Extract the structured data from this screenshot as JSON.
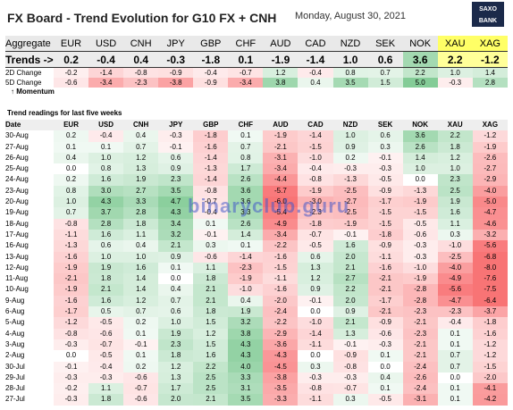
{
  "header": {
    "title": "FX Board - Trend Evolution for G10 FX + CNH",
    "date": "Monday, August 30, 2021",
    "logo": "SAXO BANK"
  },
  "summary": {
    "columns": [
      "Aggregate",
      "EUR",
      "USD",
      "CNH",
      "JPY",
      "GBP",
      "CHF",
      "AUD",
      "CAD",
      "NZD",
      "SEK",
      "NOK",
      "XAU",
      "XAG"
    ],
    "rows": [
      [
        "Trends ->",
        "0.2",
        "-0.4",
        "0.4",
        "-0.3",
        "-1.8",
        "0.1",
        "-1.9",
        "-1.4",
        "1.0",
        "0.6",
        "3.6",
        "2.2",
        "-1.2"
      ],
      [
        "2D Change",
        "-0.2",
        "-1.4",
        "-0.8",
        "-0.9",
        "-0.4",
        "-0.7",
        "1.2",
        "-0.4",
        "0.8",
        "0.7",
        "2.2",
        "1.0",
        "1.4"
      ],
      [
        "5D Change",
        "-0.6",
        "-3.4",
        "-2.3",
        "-3.8",
        "-0.9",
        "-3.4",
        "3.8",
        "0.4",
        "3.5",
        "1.5",
        "5.0",
        "-0.3",
        "2.8"
      ]
    ],
    "momentum": "↑ Momentum"
  },
  "readings": {
    "title": "Trend readings for last five weeks",
    "columns": [
      "Date",
      "EUR",
      "USD",
      "CNH",
      "JPY",
      "GBP",
      "CHF",
      "AUD",
      "CAD",
      "NZD",
      "SEK",
      "NOK",
      "XAU",
      "XAG"
    ],
    "rows": [
      [
        "30-Aug",
        "0.2",
        "-0.4",
        "0.4",
        "-0.3",
        "-1.8",
        "0.1",
        "-1.9",
        "-1.4",
        "1.0",
        "0.6",
        "3.6",
        "2.2",
        "-1.2"
      ],
      [
        "27-Aug",
        "0.1",
        "0.1",
        "0.7",
        "-0.1",
        "-1.6",
        "0.7",
        "-2.1",
        "-1.5",
        "0.9",
        "0.3",
        "2.6",
        "1.8",
        "-1.9"
      ],
      [
        "26-Aug",
        "0.4",
        "1.0",
        "1.2",
        "0.6",
        "-1.4",
        "0.8",
        "-3.1",
        "-1.0",
        "0.2",
        "-0.1",
        "1.4",
        "1.2",
        "-2.6"
      ],
      [
        "25-Aug",
        "0.0",
        "0.8",
        "1.3",
        "0.9",
        "-1.3",
        "1.7",
        "-3.4",
        "-0.4",
        "-0.3",
        "-0.3",
        "1.0",
        "1.0",
        "-2.7"
      ],
      [
        "24-Aug",
        "0.2",
        "1.6",
        "1.9",
        "2.3",
        "-1.4",
        "2.6",
        "-4.4",
        "-0.8",
        "-1.3",
        "-0.5",
        "0.0",
        "2.3",
        "-2.9"
      ],
      [
        "23-Aug",
        "0.8",
        "3.0",
        "2.7",
        "3.5",
        "-0.8",
        "3.6",
        "-5.7",
        "-1.9",
        "-2.5",
        "-0.9",
        "-1.3",
        "2.5",
        "-4.0"
      ],
      [
        "20-Aug",
        "1.0",
        "4.3",
        "3.3",
        "4.7",
        "-0.7",
        "3.6",
        "-6.0",
        "-3.0",
        "-2.7",
        "-1.7",
        "-1.9",
        "1.9",
        "-5.0"
      ],
      [
        "19-Aug",
        "0.7",
        "3.7",
        "2.8",
        "4.3",
        "-0.4",
        "3.3",
        "-5.4",
        "-2.3",
        "-2.5",
        "-1.5",
        "-1.5",
        "1.6",
        "-4.7"
      ],
      [
        "18-Aug",
        "-0.8",
        "2.8",
        "1.8",
        "3.4",
        "0.1",
        "2.6",
        "-4.9",
        "-1.8",
        "-1.9",
        "-1.5",
        "-0.5",
        "1.1",
        "-4.6"
      ],
      [
        "17-Aug",
        "-1.1",
        "1.6",
        "1.1",
        "3.2",
        "-0.1",
        "1.4",
        "-3.4",
        "-0.7",
        "-0.1",
        "-1.8",
        "-0.6",
        "0.3",
        "-3.2"
      ],
      [
        "16-Aug",
        "-1.3",
        "0.6",
        "0.4",
        "2.1",
        "0.3",
        "0.1",
        "-2.2",
        "-0.5",
        "1.6",
        "-0.9",
        "-0.3",
        "-1.0",
        "-5.6"
      ],
      [
        "13-Aug",
        "-1.6",
        "1.0",
        "1.0",
        "0.9",
        "-0.6",
        "-1.4",
        "-1.6",
        "0.6",
        "2.0",
        "-1.1",
        "-0.3",
        "-2.5",
        "-6.8"
      ],
      [
        "12-Aug",
        "-1.9",
        "1.9",
        "1.6",
        "0.1",
        "1.1",
        "-2.3",
        "-1.5",
        "1.3",
        "2.1",
        "-1.6",
        "-1.0",
        "-4.0",
        "-8.0"
      ],
      [
        "11-Aug",
        "-2.1",
        "1.8",
        "1.4",
        "0.0",
        "1.8",
        "-1.9",
        "-1.1",
        "1.2",
        "2.7",
        "-2.1",
        "-1.9",
        "-4.9",
        "-7.6"
      ],
      [
        "10-Aug",
        "-1.9",
        "2.1",
        "1.4",
        "0.4",
        "2.1",
        "-1.0",
        "-1.6",
        "0.9",
        "2.2",
        "-2.1",
        "-2.8",
        "-5.6",
        "-7.5"
      ],
      [
        "9-Aug",
        "-1.6",
        "1.6",
        "1.2",
        "0.7",
        "2.1",
        "0.4",
        "-2.0",
        "-0.1",
        "2.0",
        "-1.7",
        "-2.8",
        "-4.7",
        "-6.4"
      ],
      [
        "6-Aug",
        "-1.7",
        "0.5",
        "0.7",
        "0.6",
        "1.8",
        "1.9",
        "-2.4",
        "0.0",
        "0.9",
        "-2.1",
        "-2.3",
        "-2.3",
        "-3.7"
      ],
      [
        "5-Aug",
        "-1.2",
        "-0.5",
        "0.2",
        "1.0",
        "1.5",
        "3.2",
        "-2.2",
        "-1.0",
        "2.1",
        "-0.9",
        "-2.1",
        "-0.4",
        "-1.8"
      ],
      [
        "4-Aug",
        "-0.8",
        "-0.6",
        "0.1",
        "1.9",
        "1.2",
        "3.8",
        "-2.9",
        "-1.4",
        "1.3",
        "-0.6",
        "-2.3",
        "0.1",
        "-1.6"
      ],
      [
        "3-Aug",
        "-0.3",
        "-0.7",
        "-0.1",
        "2.3",
        "1.5",
        "4.3",
        "-3.6",
        "-1.1",
        "-0.1",
        "-0.3",
        "-2.1",
        "0.1",
        "-1.2"
      ],
      [
        "2-Aug",
        "0.0",
        "-0.5",
        "0.1",
        "1.8",
        "1.6",
        "4.3",
        "-4.3",
        "0.0",
        "-0.9",
        "0.1",
        "-2.1",
        "0.7",
        "-1.2"
      ],
      [
        "30-Jul",
        "-0.1",
        "-0.4",
        "0.2",
        "1.2",
        "2.2",
        "4.0",
        "-4.5",
        "0.3",
        "-0.8",
        "0.0",
        "-2.4",
        "0.7",
        "-1.5"
      ],
      [
        "29-Jul",
        "-0.3",
        "-0.3",
        "-0.6",
        "1.3",
        "2.5",
        "3.3",
        "-3.8",
        "-0.3",
        "-0.3",
        "0.4",
        "-2.6",
        "0.0",
        "-2.0"
      ],
      [
        "28-Jul",
        "-0.2",
        "1.1",
        "-0.7",
        "1.7",
        "2.5",
        "3.1",
        "-3.5",
        "-0.8",
        "-0.7",
        "0.1",
        "-2.4",
        "0.1",
        "-4.1"
      ],
      [
        "27-Jul",
        "-0.3",
        "1.8",
        "-0.6",
        "2.0",
        "2.1",
        "3.5",
        "-3.3",
        "-1.1",
        "0.3",
        "-0.5",
        "-3.1",
        "0.1",
        "-4.2"
      ]
    ]
  },
  "watermark": "binaryclub.guru"
}
